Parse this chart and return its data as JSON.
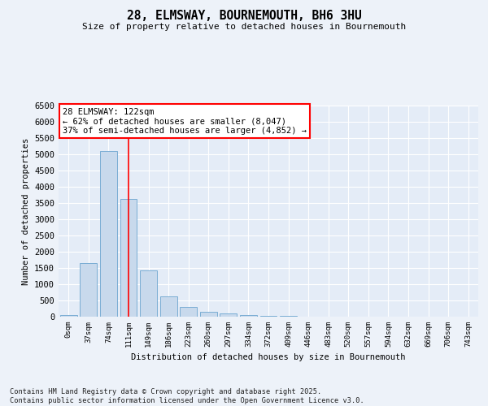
{
  "title1": "28, ELMSWAY, BOURNEMOUTH, BH6 3HU",
  "title2": "Size of property relative to detached houses in Bournemouth",
  "xlabel": "Distribution of detached houses by size in Bournemouth",
  "ylabel": "Number of detached properties",
  "categories": [
    "0sqm",
    "37sqm",
    "74sqm",
    "111sqm",
    "149sqm",
    "186sqm",
    "223sqm",
    "260sqm",
    "297sqm",
    "334sqm",
    "372sqm",
    "409sqm",
    "446sqm",
    "483sqm",
    "520sqm",
    "557sqm",
    "594sqm",
    "632sqm",
    "669sqm",
    "706sqm",
    "743sqm"
  ],
  "values": [
    55,
    1650,
    5100,
    3620,
    1420,
    620,
    310,
    150,
    100,
    60,
    30,
    15,
    8,
    4,
    2,
    1,
    0,
    0,
    0,
    0,
    0
  ],
  "bar_color": "#c8d9ec",
  "bar_edge_color": "#7aadd4",
  "vline_x": 3.0,
  "vline_color": "red",
  "annotation_text": "28 ELMSWAY: 122sqm\n← 62% of detached houses are smaller (8,047)\n37% of semi-detached houses are larger (4,852) →",
  "annotation_box_color": "white",
  "annotation_box_edge_color": "red",
  "ylim": [
    0,
    6500
  ],
  "yticks": [
    0,
    500,
    1000,
    1500,
    2000,
    2500,
    3000,
    3500,
    4000,
    4500,
    5000,
    5500,
    6000,
    6500
  ],
  "footer1": "Contains HM Land Registry data © Crown copyright and database right 2025.",
  "footer2": "Contains public sector information licensed under the Open Government Licence v3.0.",
  "bg_color": "#edf2f9",
  "plot_bg_color": "#e4ecf7"
}
